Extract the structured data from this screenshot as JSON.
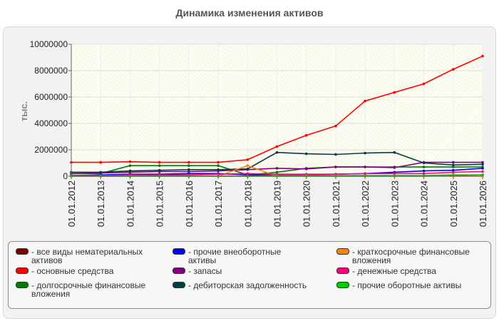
{
  "chart_data": {
    "type": "line",
    "title": "Динамика изменения активов",
    "ylabel": "тыс.",
    "xlabel": "",
    "x": [
      "01.01.2012",
      "01.01.2013",
      "01.01.2014",
      "01.01.2015",
      "01.01.2016",
      "01.01.2017",
      "01.01.2018",
      "01.01.2019",
      "01.01.2020",
      "01.01.2021",
      "01.01.2022",
      "01.01.2023",
      "01.01.2024",
      "01.01.2025",
      "01.01.2026"
    ],
    "ylim": [
      0,
      10000000
    ],
    "yticks": [
      "0",
      "2000000",
      "4000000",
      "6000000",
      "8000000",
      "10000000"
    ],
    "grid": true,
    "legend_position": "bottom",
    "series": [
      {
        "name": "- все виды нематериальных активов",
        "color": "#800000",
        "values": [
          0,
          0,
          0,
          0,
          0,
          0,
          0,
          0,
          0,
          0,
          0,
          0,
          0,
          50000,
          100000
        ]
      },
      {
        "name": "- основные средства",
        "color": "#ff0000",
        "values": [
          1050000,
          1050000,
          1100000,
          1050000,
          1050000,
          1050000,
          1250000,
          2250000,
          3100000,
          3800000,
          5700000,
          6350000,
          7000000,
          8100000,
          9100000
        ]
      },
      {
        "name": "- долгосрочные финансовые вложения",
        "color": "#008000",
        "values": [
          200000,
          200000,
          800000,
          800000,
          800000,
          800000,
          100000,
          300000,
          600000,
          700000,
          700000,
          700000,
          700000,
          700000,
          700000
        ]
      },
      {
        "name": "- прочие внеоборотные активы",
        "color": "#0000ff",
        "values": [
          50000,
          100000,
          150000,
          150000,
          200000,
          200000,
          100000,
          100000,
          100000,
          150000,
          200000,
          300000,
          400000,
          450000,
          600000
        ]
      },
      {
        "name": "- запасы",
        "color": "#800080",
        "values": [
          200000,
          250000,
          300000,
          350000,
          350000,
          400000,
          500000,
          600000,
          550000,
          700000,
          700000,
          650000,
          1050000,
          1050000,
          1050000
        ]
      },
      {
        "name": "- дебиторская задолженность",
        "color": "#004040",
        "values": [
          300000,
          300000,
          400000,
          450000,
          500000,
          500000,
          550000,
          1800000,
          1700000,
          1650000,
          1750000,
          1800000,
          1000000,
          850000,
          900000
        ]
      },
      {
        "name": "- краткосрочные финансовые вложения",
        "color": "#ff8000",
        "values": [
          0,
          0,
          0,
          0,
          0,
          0,
          800000,
          0,
          0,
          0,
          0,
          0,
          0,
          0,
          0
        ]
      },
      {
        "name": "- денежные средства",
        "color": "#ff0080",
        "values": [
          50000,
          50000,
          100000,
          100000,
          100000,
          150000,
          200000,
          150000,
          150000,
          150000,
          200000,
          200000,
          200000,
          300000,
          350000
        ]
      },
      {
        "name": "- прочие оборотные активы",
        "color": "#00cc00",
        "values": [
          0,
          0,
          0,
          0,
          0,
          0,
          0,
          50000,
          50000,
          50000,
          50000,
          50000,
          50000,
          100000,
          100000
        ]
      }
    ]
  }
}
